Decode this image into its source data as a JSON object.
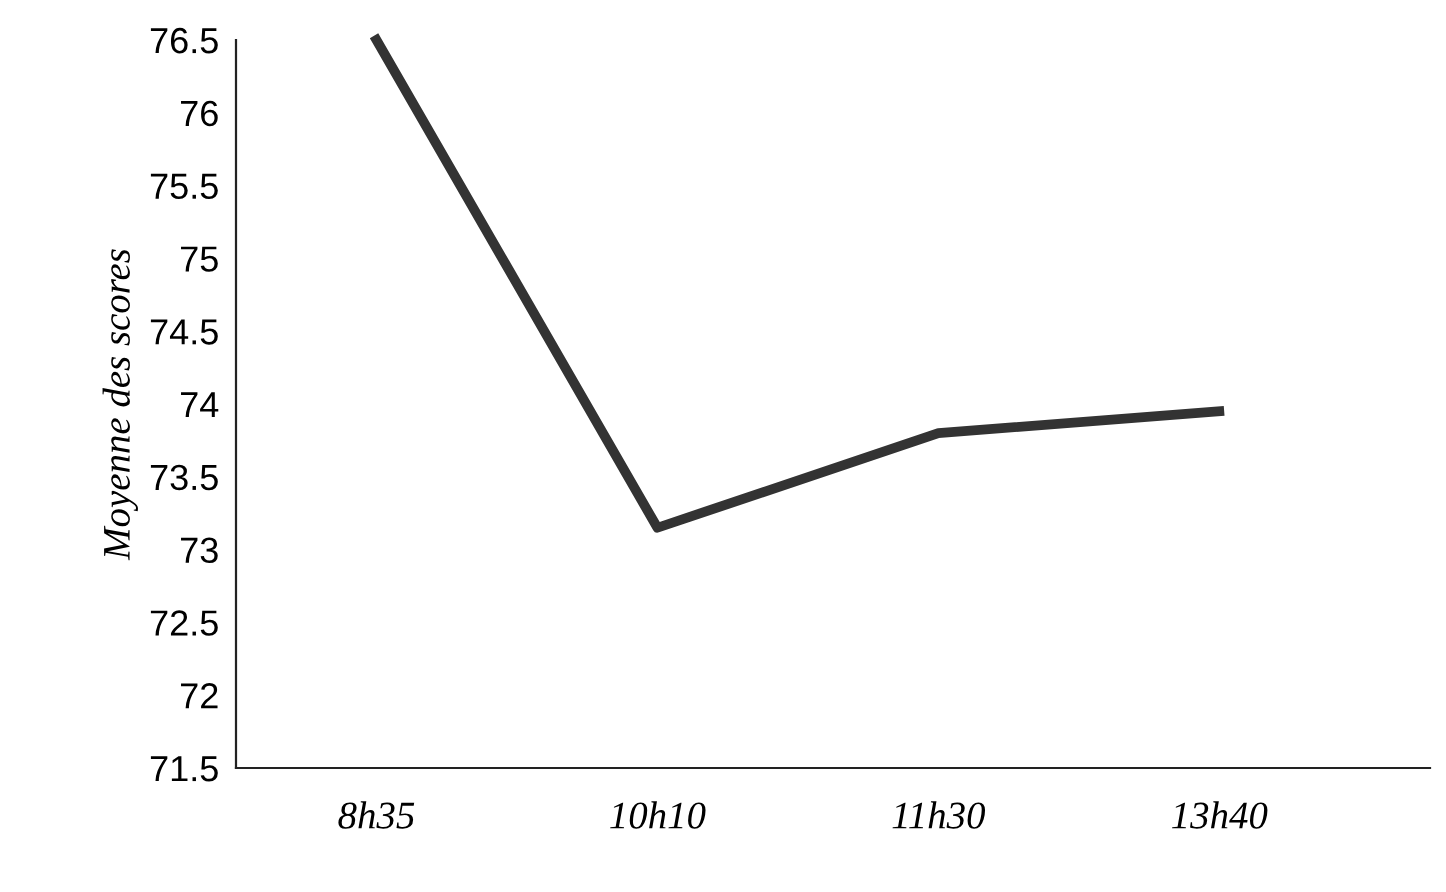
{
  "chart_data": {
    "type": "line",
    "ylabel": "Moyenne des scores",
    "categories": [
      "8h35",
      "10h10",
      "11h30",
      "13h40"
    ],
    "series": [
      {
        "color": "#333333",
        "values": [
          76.5,
          73.15,
          73.8,
          73.95
        ]
      }
    ],
    "ylim": [
      71.5,
      76.5
    ],
    "yticks": [
      71.5,
      72,
      72.5,
      73,
      73.5,
      74,
      74.5,
      75,
      75.5,
      76,
      76.5
    ],
    "grid": false,
    "legend": false,
    "marker": "none",
    "line_style": "solid"
  }
}
